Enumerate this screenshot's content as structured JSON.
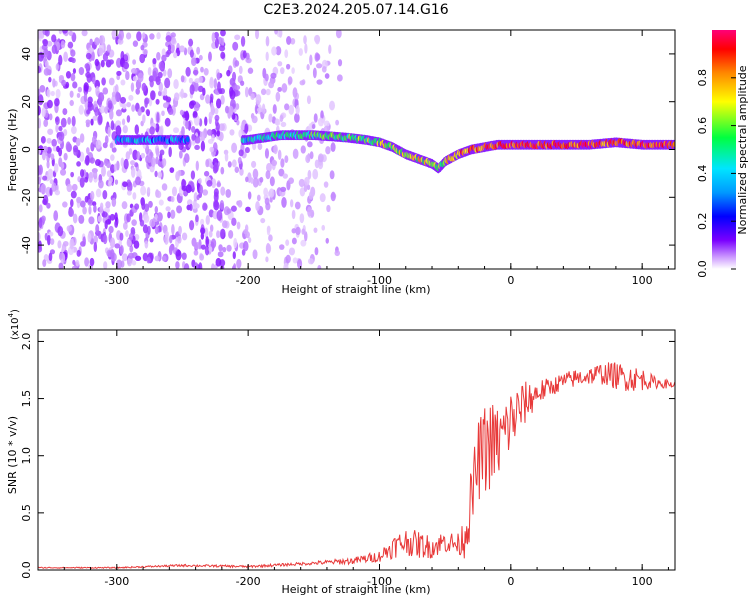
{
  "title": "C2E3.2024.205.07.14.G16",
  "chart_data": [
    {
      "type": "heatmap",
      "xlabel": "Height of straight line (km)",
      "ylabel": "Frequency (Hz)",
      "xlim": [
        -360,
        125
      ],
      "ylim": [
        -50,
        50
      ],
      "xticks": [
        -300,
        -200,
        -100,
        0,
        100
      ],
      "yticks": [
        -40,
        -20,
        0,
        20,
        40
      ],
      "colorbar": {
        "label": "Normalized spectral amplitude",
        "range": [
          0,
          1
        ],
        "ticks": [
          0.0,
          0.2,
          0.4,
          0.6,
          0.8
        ],
        "colors": [
          "#ffffff",
          "#cc99ff",
          "#7a00ff",
          "#0000ff",
          "#00e5ff",
          "#00ff40",
          "#ffff00",
          "#ff8800",
          "#ff0000",
          "#ff0077"
        ]
      },
      "ridge": {
        "x": [
          -300,
          -250,
          -200,
          -175,
          -150,
          -125,
          -110,
          -100,
          -90,
          -80,
          -70,
          -60,
          -55,
          -50,
          -40,
          -30,
          -20,
          -10,
          0,
          20,
          40,
          60,
          80,
          100,
          125
        ],
        "y": [
          4,
          4,
          4,
          6,
          6,
          5,
          4,
          3,
          1,
          -2,
          -4,
          -6,
          -8,
          -5,
          -2,
          0,
          1,
          2,
          2,
          2,
          2,
          2,
          3,
          2,
          2
        ],
        "amp": [
          0.45,
          0.45,
          0.5,
          0.55,
          0.6,
          0.6,
          0.65,
          0.7,
          0.7,
          0.7,
          0.75,
          0.7,
          0.6,
          0.75,
          0.85,
          0.9,
          0.9,
          0.9,
          0.95,
          0.95,
          0.95,
          0.95,
          0.9,
          0.95,
          0.95
        ]
      },
      "noise_region_x": [
        -360,
        -130
      ]
    },
    {
      "type": "line",
      "xlabel": "Height of straight line (km)",
      "ylabel": "SNR (10 * v/v)",
      "y_multiplier": "(x10",
      "y_multiplier_exp": "4",
      "xlim": [
        -360,
        125
      ],
      "ylim": [
        0,
        2.1
      ],
      "xticks": [
        -300,
        -200,
        -100,
        0,
        100
      ],
      "yticks": [
        0.0,
        0.5,
        1.0,
        1.5,
        2.0
      ],
      "series": [
        {
          "color": "#e83a3a",
          "x": [
            -360,
            -300,
            -250,
            -200,
            -150,
            -120,
            -100,
            -90,
            -80,
            -70,
            -60,
            -50,
            -40,
            -35,
            -30,
            -25,
            -20,
            -15,
            -10,
            -5,
            0,
            10,
            20,
            30,
            40,
            50,
            60,
            70,
            80,
            90,
            100,
            110,
            125
          ],
          "y": [
            0.02,
            0.02,
            0.04,
            0.03,
            0.06,
            0.08,
            0.12,
            0.2,
            0.25,
            0.22,
            0.2,
            0.25,
            0.22,
            0.3,
            0.6,
            0.95,
            1.05,
            1.1,
            1.1,
            1.2,
            1.3,
            1.45,
            1.55,
            1.6,
            1.65,
            1.68,
            1.7,
            1.72,
            1.7,
            1.68,
            1.67,
            1.64,
            1.62
          ],
          "noise": [
            0.005,
            0.005,
            0.01,
            0.01,
            0.015,
            0.03,
            0.05,
            0.1,
            0.12,
            0.12,
            0.1,
            0.1,
            0.1,
            0.2,
            0.3,
            0.35,
            0.4,
            0.4,
            0.35,
            0.3,
            0.3,
            0.2,
            0.12,
            0.08,
            0.08,
            0.08,
            0.08,
            0.1,
            0.12,
            0.12,
            0.1,
            0.05,
            0.03
          ]
        }
      ]
    }
  ]
}
